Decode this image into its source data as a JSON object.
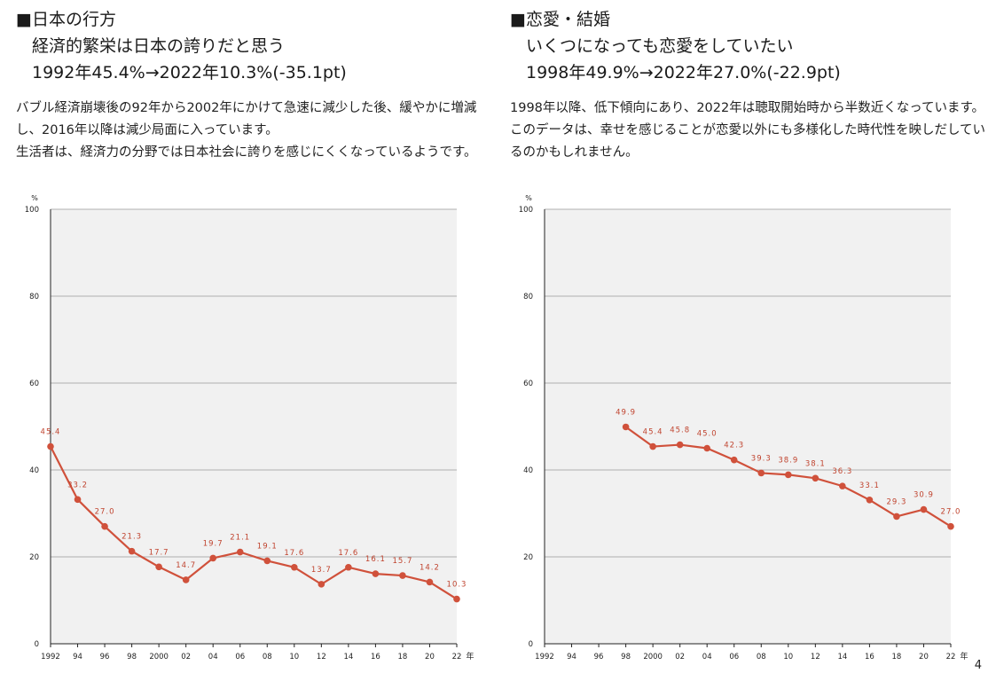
{
  "page_number": "4",
  "colors": {
    "line": "#d0513b",
    "plot_bg": "#f1f1f1",
    "grid": "#9a9a9a",
    "axis": "#222222",
    "label_text": "#c0442f"
  },
  "left": {
    "section": "■日本の行方",
    "headline1": "経済的繁栄は日本の誇りだと思う",
    "headline2": "1992年45.4%→2022年10.3%(-35.1pt)",
    "desc": [
      "バブル経済崩壊後の92年から2002年にかけて急速に減少した後、緩やかに増減し、2016年以降は減少局面に入っています。",
      "生活者は、経済力の分野では日本社会に誇りを感じにくくなっているようです。"
    ]
  },
  "right": {
    "section": "■恋愛・結婚",
    "headline1": "いくつになっても恋愛をしていたい",
    "headline2": "1998年49.9%→2022年27.0%(-22.9pt)",
    "desc": [
      "1998年以降、低下傾向にあり、2022年は聴取開始時から半数近くなっています。",
      "このデータは、幸せを感じることが恋愛以外にも多様化した時代性を映しだしているのかもしれません。"
    ]
  },
  "chart_data": [
    {
      "type": "line",
      "unit": "%",
      "x_suffix": "年",
      "x": [
        "1992",
        "94",
        "96",
        "98",
        "2000",
        "02",
        "04",
        "06",
        "08",
        "10",
        "12",
        "14",
        "16",
        "18",
        "20",
        "22"
      ],
      "ylim": [
        0,
        100
      ],
      "yticks": [
        0,
        20,
        40,
        60,
        80,
        100
      ],
      "grid": true,
      "series": [
        {
          "values": [
            45.4,
            33.2,
            27.0,
            21.3,
            17.7,
            14.7,
            19.7,
            21.1,
            19.1,
            17.6,
            13.7,
            17.6,
            16.1,
            15.7,
            14.2,
            10.3
          ]
        }
      ]
    },
    {
      "type": "line",
      "unit": "%",
      "x_suffix": "年",
      "x": [
        "1992",
        "94",
        "96",
        "98",
        "2000",
        "02",
        "04",
        "06",
        "08",
        "10",
        "12",
        "14",
        "16",
        "18",
        "20",
        "22"
      ],
      "ylim": [
        0,
        100
      ],
      "yticks": [
        0,
        20,
        40,
        60,
        80,
        100
      ],
      "grid": true,
      "series": [
        {
          "values": [
            null,
            null,
            null,
            49.9,
            45.4,
            45.8,
            45.0,
            42.3,
            39.3,
            38.9,
            38.1,
            36.3,
            33.1,
            29.3,
            30.9,
            27.0
          ]
        }
      ]
    }
  ]
}
